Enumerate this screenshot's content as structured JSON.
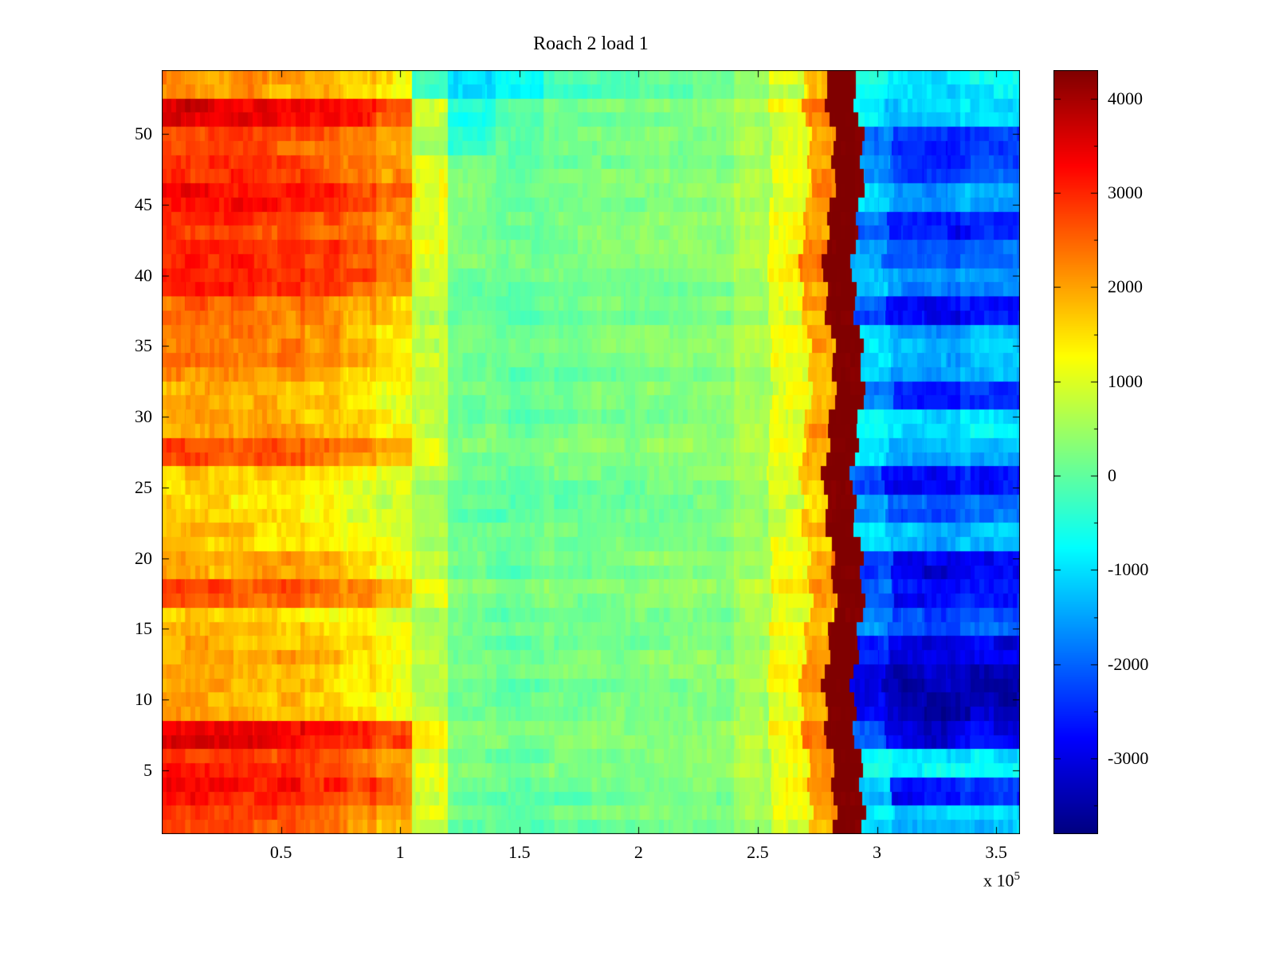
{
  "chart_data": {
    "type": "heatmap",
    "title": "Roach 2 load 1",
    "colormap": "jet",
    "grid": false,
    "legend": "none",
    "colorbar_position": "right",
    "x_range": [
      0,
      360000
    ],
    "y_range": [
      0.5,
      54.5
    ],
    "clim": [
      -3800,
      4300
    ],
    "x_tick_values": [
      50000,
      100000,
      150000,
      200000,
      250000,
      300000,
      350000
    ],
    "x_tick_labels": [
      "0.5",
      "1",
      "1.5",
      "2",
      "2.5",
      "3",
      "3.5"
    ],
    "x_axis_multiplier_prefix": "x 10",
    "x_axis_multiplier_exponent": "5",
    "y_tick_values": [
      5,
      10,
      15,
      20,
      25,
      30,
      35,
      40,
      45,
      50
    ],
    "y_tick_labels": [
      "5",
      "10",
      "15",
      "20",
      "25",
      "30",
      "35",
      "40",
      "45",
      "50"
    ],
    "colorbar_tick_values": [
      4000,
      3000,
      2000,
      1000,
      0,
      -1000,
      -2000,
      -3000
    ],
    "colorbar_tick_labels": [
      "4000",
      "3000",
      "2000",
      "1000",
      "0",
      "-1000",
      "-2000",
      "-3000"
    ],
    "colorbar_minor_tick_step": 500,
    "x_edges": [
      0,
      15000,
      30000,
      45000,
      60000,
      75000,
      90000,
      105000,
      120000,
      140000,
      160000,
      180000,
      200000,
      220000,
      240000,
      255000,
      270000,
      280000,
      292000,
      305000,
      320000,
      335000,
      360000
    ],
    "y_start": 1,
    "row_band_height": 2,
    "values": [
      [
        2800,
        2800,
        2700,
        2650,
        2500,
        2300,
        2000,
        900,
        100,
        0,
        100,
        150,
        200,
        250,
        500,
        1100,
        2000,
        4300,
        -800,
        -1200,
        -1200,
        -1100
      ],
      [
        3300,
        3300,
        3200,
        3150,
        3000,
        2800,
        2500,
        1100,
        150,
        50,
        100,
        200,
        250,
        300,
        600,
        1200,
        2200,
        4300,
        -1000,
        -2600,
        -2600,
        -2300
      ],
      [
        2900,
        2900,
        2800,
        2750,
        2600,
        2400,
        2100,
        900,
        100,
        0,
        150,
        200,
        200,
        300,
        550,
        1150,
        2000,
        4300,
        -700,
        -1000,
        -1000,
        -900
      ],
      [
        3400,
        3400,
        3300,
        3250,
        3100,
        2900,
        2600,
        1200,
        200,
        100,
        150,
        200,
        250,
        350,
        600,
        1250,
        2300,
        4300,
        -2200,
        -3000,
        -3200,
        -3000
      ],
      [
        1900,
        1900,
        1800,
        1750,
        1600,
        1400,
        1100,
        700,
        100,
        0,
        100,
        150,
        200,
        250,
        500,
        1100,
        1900,
        4300,
        -3000,
        -3400,
        -3500,
        -3400
      ],
      [
        1900,
        1900,
        1850,
        1800,
        1650,
        1450,
        1150,
        650,
        50,
        0,
        100,
        150,
        200,
        300,
        550,
        1150,
        2000,
        4300,
        -3000,
        -3500,
        -3400,
        -3400
      ],
      [
        2000,
        2000,
        1900,
        1850,
        1700,
        1500,
        1200,
        700,
        100,
        50,
        150,
        200,
        250,
        300,
        550,
        1100,
        1900,
        4300,
        -2500,
        -3000,
        -3100,
        -2900
      ],
      [
        1700,
        1700,
        1650,
        1600,
        1450,
        1250,
        1000,
        600,
        100,
        0,
        100,
        150,
        200,
        250,
        500,
        1050,
        1800,
        4300,
        -1600,
        -2200,
        -2300,
        -2100
      ],
      [
        2600,
        2600,
        2500,
        2450,
        2300,
        2100,
        1800,
        900,
        150,
        50,
        150,
        200,
        250,
        300,
        550,
        1150,
        2100,
        4300,
        -2000,
        -2800,
        -2900,
        -2700
      ],
      [
        2000,
        2000,
        1950,
        1900,
        1750,
        1550,
        1250,
        700,
        100,
        0,
        100,
        200,
        250,
        300,
        550,
        1100,
        1900,
        4300,
        -2200,
        -3000,
        -3000,
        -2800
      ],
      [
        1700,
        1700,
        1650,
        1600,
        1450,
        1250,
        1000,
        650,
        100,
        50,
        150,
        200,
        200,
        250,
        500,
        1050,
        1800,
        4300,
        -900,
        -1300,
        -1400,
        -1200
      ],
      [
        1600,
        1600,
        1550,
        1500,
        1350,
        1150,
        950,
        600,
        50,
        0,
        100,
        150,
        200,
        250,
        500,
        1000,
        1700,
        4300,
        -1400,
        -2000,
        -2100,
        -1900
      ],
      [
        1600,
        1600,
        1550,
        1500,
        1400,
        1200,
        950,
        600,
        100,
        0,
        100,
        150,
        200,
        300,
        500,
        1050,
        1800,
        4300,
        -2000,
        -2800,
        -2900,
        -2700
      ],
      [
        2600,
        2600,
        2500,
        2450,
        2300,
        2100,
        1750,
        900,
        150,
        50,
        150,
        200,
        250,
        300,
        550,
        1100,
        2000,
        4300,
        -1100,
        -1500,
        -1600,
        -1400
      ],
      [
        2000,
        2000,
        1950,
        1900,
        1750,
        1550,
        1250,
        750,
        100,
        0,
        100,
        150,
        200,
        250,
        500,
        1050,
        1900,
        4300,
        -800,
        -1100,
        -1200,
        -1000
      ],
      [
        1800,
        1800,
        1750,
        1700,
        1550,
        1350,
        1100,
        650,
        100,
        50,
        100,
        200,
        250,
        300,
        500,
        1050,
        1800,
        4300,
        -1900,
        -2600,
        -2700,
        -2500
      ],
      [
        2300,
        2300,
        2250,
        2200,
        2000,
        1750,
        1400,
        800,
        100,
        0,
        100,
        150,
        200,
        250,
        500,
        1100,
        1900,
        4300,
        -1000,
        -1400,
        -1500,
        -1300
      ],
      [
        2300,
        2300,
        2250,
        2150,
        1950,
        1700,
        1350,
        750,
        100,
        50,
        150,
        200,
        250,
        300,
        550,
        1100,
        1900,
        4300,
        -1100,
        -1500,
        -1600,
        -1400
      ],
      [
        2500,
        2500,
        2450,
        2400,
        2250,
        2050,
        1700,
        850,
        150,
        50,
        150,
        200,
        250,
        300,
        550,
        1150,
        2000,
        4300,
        -2000,
        -2700,
        -2800,
        -2600
      ],
      [
        3200,
        3200,
        3100,
        3050,
        2900,
        2700,
        2300,
        1000,
        150,
        100,
        150,
        200,
        250,
        300,
        600,
        1200,
        2100,
        4300,
        -1200,
        -1600,
        -1700,
        -1500
      ],
      [
        3000,
        3000,
        2950,
        2900,
        2750,
        2550,
        2200,
        1000,
        150,
        50,
        150,
        200,
        250,
        300,
        550,
        1150,
        2100,
        4300,
        -1600,
        -2200,
        -2300,
        -2100
      ],
      [
        2800,
        2800,
        2750,
        2700,
        2550,
        2350,
        2000,
        950,
        150,
        50,
        150,
        200,
        250,
        300,
        550,
        1150,
        2000,
        4300,
        -2000,
        -2700,
        -2800,
        -2600
      ],
      [
        3300,
        3300,
        3200,
        3150,
        3000,
        2800,
        2400,
        1100,
        200,
        100,
        150,
        200,
        250,
        350,
        600,
        1200,
        2200,
        4300,
        -1100,
        -1500,
        -1600,
        -1400
      ],
      [
        2900,
        2900,
        2850,
        2800,
        2650,
        2450,
        2100,
        1000,
        150,
        50,
        150,
        200,
        250,
        300,
        550,
        1150,
        2000,
        4300,
        -1700,
        -2300,
        -2400,
        -2200
      ],
      [
        2700,
        2700,
        2650,
        2600,
        2450,
        2250,
        1900,
        500,
        -400,
        -100,
        100,
        150,
        200,
        250,
        550,
        1100,
        2000,
        4300,
        -1800,
        -2500,
        -2600,
        -2400
      ],
      [
        3500,
        3500,
        3400,
        3350,
        3200,
        3000,
        2600,
        800,
        -600,
        -200,
        100,
        150,
        200,
        250,
        500,
        1100,
        2100,
        4300,
        -900,
        -1200,
        -1300,
        -1100
      ],
      [
        2200,
        2100,
        2300,
        2000,
        1900,
        1700,
        1400,
        -300,
        -1100,
        -700,
        -200,
        -100,
        0,
        100,
        400,
        900,
        1700,
        4300,
        -600,
        -900,
        -1000,
        -800
      ]
    ]
  }
}
